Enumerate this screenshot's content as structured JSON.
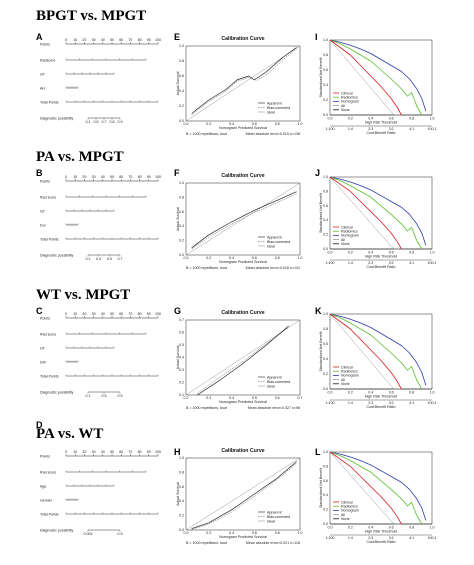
{
  "sections": [
    {
      "title": "BPGT vs. MPGT",
      "nomogram": {
        "letter": "A",
        "rows": [
          "Points",
          "Radscore",
          "GT",
          "AH",
          "Total Points",
          "Diagnostic possibility"
        ],
        "ticks": [
          "0",
          "10",
          "20",
          "30",
          "40",
          "50",
          "60",
          "70",
          "80",
          "90",
          "100"
        ],
        "prob_ticks": [
          "0.1",
          "0.5",
          "0.7",
          "0.8",
          "0.9"
        ]
      },
      "calibration": {
        "letter": "E",
        "title": "Calibration Curve",
        "xlabel": "Nomogram Predicted Survival",
        "ylabel": "Actual Survival",
        "xticks": [
          "0.0",
          "0.2",
          "0.4",
          "0.6",
          "0.8",
          "1.0"
        ],
        "yticks": [
          "0.0",
          "0.2",
          "0.4",
          "0.6",
          "0.8",
          "1.0"
        ],
        "legend": [
          "Apparent",
          "Bias-corrected",
          "Ideal"
        ],
        "footnote_left": "B = 1000 repetitions, boot",
        "footnote_right": "Mean absolute error=0.015 n=138",
        "ideal": [
          [
            0.0,
            0.0
          ],
          [
            1.0,
            1.0
          ]
        ],
        "apparent": [
          [
            0.05,
            0.1
          ],
          [
            0.2,
            0.28
          ],
          [
            0.35,
            0.42
          ],
          [
            0.45,
            0.55
          ],
          [
            0.55,
            0.6
          ],
          [
            0.6,
            0.55
          ],
          [
            0.7,
            0.65
          ],
          [
            0.85,
            0.85
          ],
          [
            0.97,
            0.98
          ]
        ],
        "bias": [
          [
            0.05,
            0.08
          ],
          [
            0.2,
            0.26
          ],
          [
            0.35,
            0.4
          ],
          [
            0.45,
            0.53
          ],
          [
            0.55,
            0.58
          ],
          [
            0.62,
            0.54
          ],
          [
            0.72,
            0.63
          ],
          [
            0.86,
            0.83
          ],
          [
            0.97,
            0.96
          ]
        ]
      },
      "dca": {
        "letter": "I",
        "ylabel": "Standardized Net Benefit",
        "xlabel": "High Risk Threshold",
        "x2label": "Cost:Benefit Ratio",
        "xticks": [
          "0.0",
          "0.2",
          "0.4",
          "0.6",
          "0.8",
          "1.0"
        ],
        "x2ticks": [
          "1:100",
          "1:4",
          "2:3",
          "3:2",
          "4:1",
          "100:1"
        ],
        "yticks": [
          "0.0",
          "0.2",
          "0.4",
          "0.6",
          "0.8",
          "1.0"
        ],
        "legend": [
          "Clinical",
          "Radiomics",
          "Nomogram",
          "All",
          "None"
        ]
      }
    },
    {
      "title": "PA vs. MPGT",
      "nomogram": {
        "letter": "B",
        "rows": [
          "Points",
          "Rad score",
          "GT",
          "Dur",
          "Total Points",
          "Diagnostic possibility"
        ],
        "ticks": [
          "0",
          "10",
          "20",
          "30",
          "40",
          "50",
          "60",
          "70",
          "80",
          "90",
          "100"
        ],
        "prob_ticks": [
          "0.1",
          "0.3",
          "0.5",
          "0.7"
        ]
      },
      "calibration": {
        "letter": "F",
        "title": "Calibration Curve",
        "xlabel": "Nomogram Predicted Survival",
        "ylabel": "Actual Survival",
        "xticks": [
          "0.0",
          "0.2",
          "0.4",
          "0.6",
          "0.8",
          "1.0"
        ],
        "yticks": [
          "0.0",
          "0.2",
          "0.4",
          "0.6",
          "0.8",
          "1.0"
        ],
        "legend": [
          "Apparent",
          "Bias-corrected",
          "Ideal"
        ],
        "footnote_left": "B = 1000 repetitions, boot",
        "footnote_right": "Mean absolute error=0.018 n=141",
        "ideal": [
          [
            0.0,
            0.0
          ],
          [
            1.0,
            1.0
          ]
        ],
        "apparent": [
          [
            0.05,
            0.1
          ],
          [
            0.2,
            0.28
          ],
          [
            0.4,
            0.46
          ],
          [
            0.6,
            0.62
          ],
          [
            0.8,
            0.76
          ],
          [
            0.97,
            0.88
          ]
        ],
        "bias": [
          [
            0.05,
            0.08
          ],
          [
            0.2,
            0.25
          ],
          [
            0.4,
            0.43
          ],
          [
            0.6,
            0.59
          ],
          [
            0.8,
            0.73
          ],
          [
            0.97,
            0.85
          ]
        ]
      },
      "dca": {
        "letter": "J",
        "ylabel": "Standardized Net Benefit",
        "xlabel": "High Risk Threshold",
        "x2label": "Cost:Benefit Ratio",
        "xticks": [
          "0.0",
          "0.2",
          "0.4",
          "0.6",
          "0.8",
          "1.0"
        ],
        "x2ticks": [
          "1:100",
          "1:4",
          "2:3",
          "3:2",
          "4:1",
          "100:1"
        ],
        "yticks": [
          "0.0",
          "0.2",
          "0.4",
          "0.6",
          "0.8",
          "1.0"
        ],
        "legend": [
          "Clinical",
          "Radiomics",
          "Nomogram",
          "All",
          "None"
        ]
      }
    },
    {
      "title": "WT vs. MPGT",
      "nomogram": {
        "letter": "C",
        "rows": [
          "Points",
          "Rad score",
          "GT",
          "DM",
          "Total Points",
          "Diagnostic possibility"
        ],
        "ticks": [
          "0",
          "10",
          "20",
          "30",
          "40",
          "50",
          "60",
          "70",
          "80",
          "90",
          "100"
        ],
        "prob_ticks": [
          "0.1",
          "0.5",
          "0.9"
        ]
      },
      "calibration": {
        "letter": "G",
        "title": "Calibration Curve",
        "xlabel": "Nomogram Predicted Survival",
        "ylabel": "Actual Survival",
        "xticks": [
          "0.2",
          "0.3",
          "0.4",
          "0.5",
          "0.6",
          "0.7"
        ],
        "yticks": [
          "0.1",
          "0.2",
          "0.3",
          "0.4",
          "0.5",
          "0.6",
          "0.7"
        ],
        "legend": [
          "Apparent",
          "Bias-corrected",
          "Ideal"
        ],
        "footnote_left": "B = 1000 repetitions, boot",
        "footnote_right": "Mean absolute error=0.027 n=96",
        "ideal": [
          [
            0.0,
            0.0
          ],
          [
            1.0,
            1.0
          ]
        ],
        "apparent": [
          [
            0.1,
            0.0
          ],
          [
            0.3,
            0.2
          ],
          [
            0.5,
            0.42
          ],
          [
            0.7,
            0.66
          ],
          [
            0.9,
            0.92
          ]
        ],
        "bias": [
          [
            0.1,
            0.02
          ],
          [
            0.3,
            0.24
          ],
          [
            0.5,
            0.45
          ],
          [
            0.7,
            0.68
          ],
          [
            0.9,
            0.9
          ]
        ]
      },
      "dca": {
        "letter": "K",
        "ylabel": "Standardized Net Benefit",
        "xlabel": "High Risk Threshold",
        "x2label": "Cost:Benefit Ratio",
        "xticks": [
          "0.0",
          "0.2",
          "0.4",
          "0.6",
          "0.8",
          "1.0"
        ],
        "x2ticks": [
          "1:100",
          "1:4",
          "2:3",
          "3:2",
          "4:1",
          "100:1"
        ],
        "yticks": [
          "0.0",
          "0.2",
          "0.4",
          "0.6",
          "0.8",
          "1.0"
        ],
        "legend": [
          "Clinical",
          "Radiomics",
          "Nomogram",
          "All",
          "None"
        ]
      }
    },
    {
      "title": "PA vs. WT",
      "nomogram": {
        "letter": "D",
        "rows": [
          "Points",
          "Rad score",
          "Age",
          "Gender",
          "Total Points",
          "Diagnostic possibility"
        ],
        "ticks": [
          "0",
          "10",
          "20",
          "30",
          "40",
          "50",
          "60",
          "70",
          "80",
          "90",
          "100"
        ],
        "prob_ticks": [
          "0.001",
          "0.5"
        ]
      },
      "calibration": {
        "letter": "H",
        "title": "Calibration Curve",
        "xlabel": "Nomogram Predicted Survival",
        "ylabel": "Actual Survival",
        "xticks": [
          "0.0",
          "0.2",
          "0.4",
          "0.6",
          "0.8",
          "1.0"
        ],
        "yticks": [
          "0.0",
          "0.2",
          "0.4",
          "0.6",
          "0.8",
          "1.0"
        ],
        "legend": [
          "Apparent",
          "Bias-corrected",
          "Ideal"
        ],
        "footnote_left": "B = 1000 repetitions, boot",
        "footnote_right": "Mean absolute error=0.021 n=118",
        "ideal": [
          [
            0.0,
            0.0
          ],
          [
            1.0,
            1.0
          ]
        ],
        "apparent": [
          [
            0.05,
            0.02
          ],
          [
            0.2,
            0.1
          ],
          [
            0.4,
            0.28
          ],
          [
            0.6,
            0.5
          ],
          [
            0.8,
            0.72
          ],
          [
            0.97,
            0.95
          ]
        ],
        "bias": [
          [
            0.05,
            0.01
          ],
          [
            0.2,
            0.08
          ],
          [
            0.4,
            0.25
          ],
          [
            0.6,
            0.47
          ],
          [
            0.8,
            0.7
          ],
          [
            0.97,
            0.93
          ]
        ]
      },
      "dca": {
        "letter": "L",
        "ylabel": "Standardized Net Benefit",
        "xlabel": "High Risk Threshold",
        "x2label": "Cost:Benefit Ratio",
        "xticks": [
          "0.0",
          "0.2",
          "0.4",
          "0.6",
          "0.8",
          "1.0"
        ],
        "x2ticks": [
          "1:100",
          "1:4",
          "2:3",
          "3:2",
          "4:1",
          "100:1"
        ],
        "yticks": [
          "0.0",
          "0.2",
          "0.4",
          "0.6",
          "0.8",
          "1.0"
        ],
        "legend": [
          "Clinical",
          "Radiomics",
          "Nomogram",
          "All",
          "None"
        ]
      }
    }
  ],
  "colors": {
    "clinical": "#d81b24",
    "radiomics": "#57c02f",
    "nomogram": "#2b3aa8",
    "all": "#9a9a9a",
    "none": "#111111",
    "curve": "#333333"
  }
}
